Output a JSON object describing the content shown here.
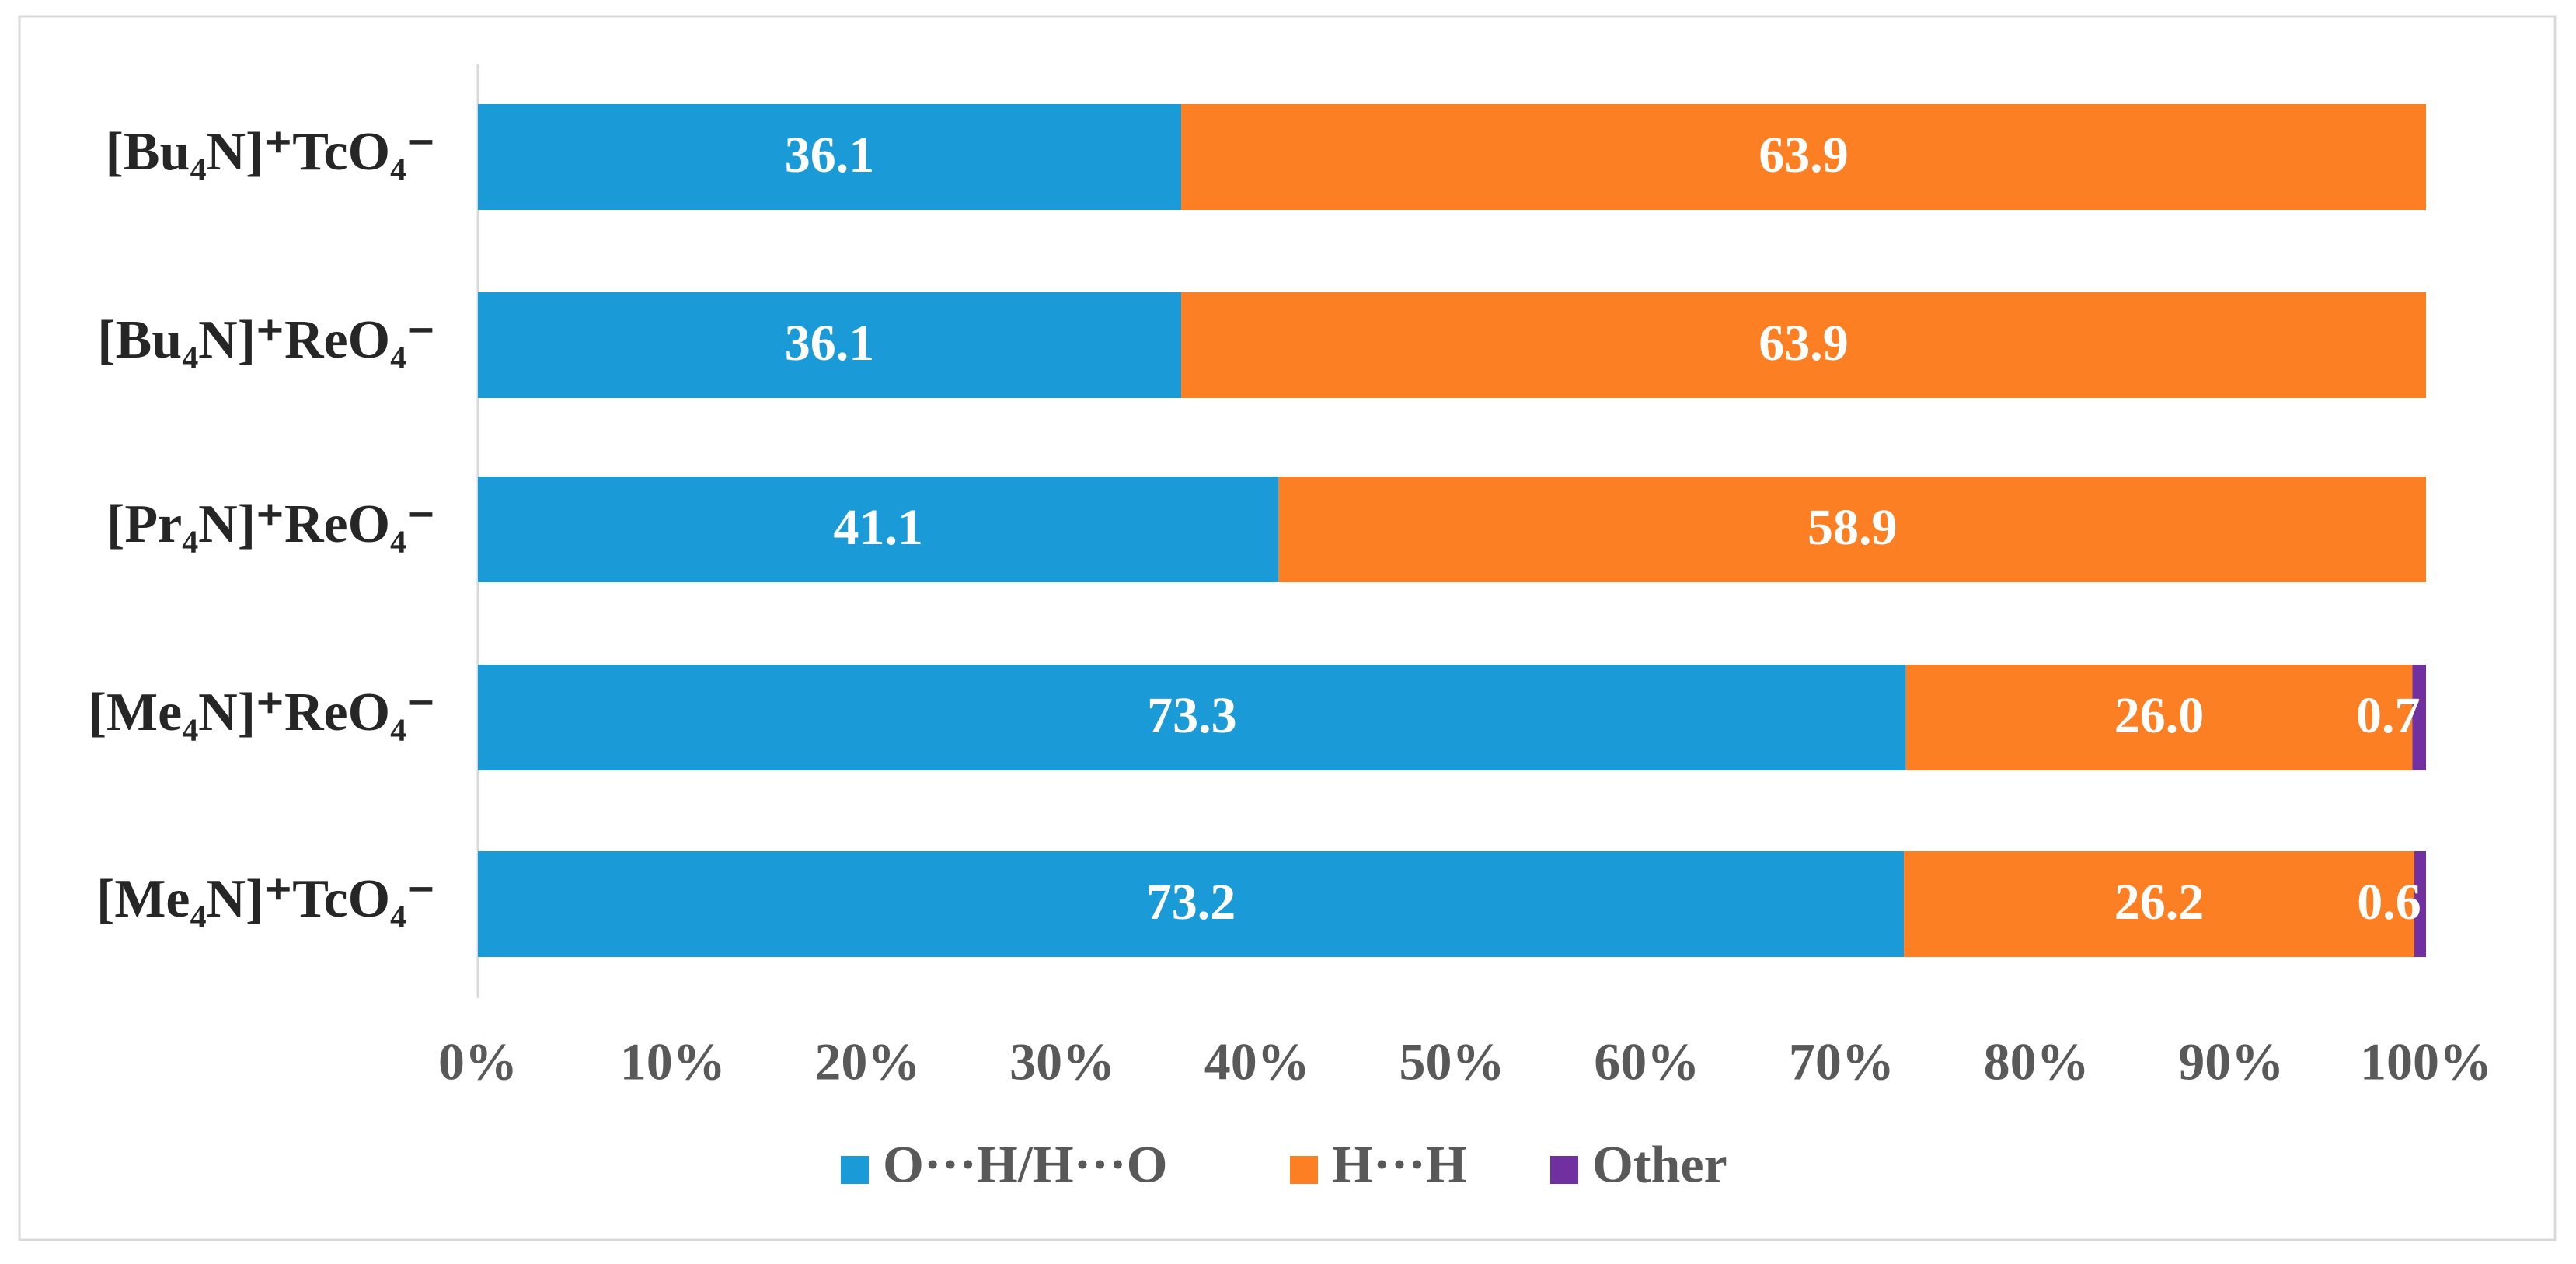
{
  "chart_data": {
    "type": "stacked-bar-horizontal",
    "categories": [
      "[Bu₄N]⁺TcO₄⁻",
      "[Bu₄N]⁺ReO₄⁻",
      "[Pr₄N]⁺ReO₄⁻",
      "[Me₄N]⁺ReO₄⁻",
      "[Me₄N]⁺TcO₄⁻"
    ],
    "series": [
      {
        "name": "O···H/H···O",
        "color": "#1a9bd7",
        "values": [
          36.1,
          36.1,
          41.1,
          73.3,
          73.2
        ]
      },
      {
        "name": "H···H",
        "color": "#fd7f24",
        "values": [
          63.9,
          63.9,
          58.9,
          26.0,
          26.2
        ],
        "value_labels": [
          "63.9",
          "63.9",
          "58.9",
          "26.0",
          "26.2"
        ]
      },
      {
        "name": "Other",
        "color": "#7030a0",
        "values": [
          null,
          null,
          null,
          0.7,
          0.6
        ]
      }
    ],
    "xlim": [
      0,
      100
    ],
    "xticks": [
      {
        "value": 0,
        "label": "0%"
      },
      {
        "value": 10,
        "label": "10%"
      },
      {
        "value": 20,
        "label": "20%"
      },
      {
        "value": 30,
        "label": "30%"
      },
      {
        "value": 40,
        "label": "40%"
      },
      {
        "value": 50,
        "label": "50%"
      },
      {
        "value": 60,
        "label": "60%"
      },
      {
        "value": 70,
        "label": "70%"
      },
      {
        "value": 80,
        "label": "80%"
      },
      {
        "value": 90,
        "label": "90%"
      },
      {
        "value": 100,
        "label": "100%"
      }
    ],
    "legend": "bottom"
  }
}
